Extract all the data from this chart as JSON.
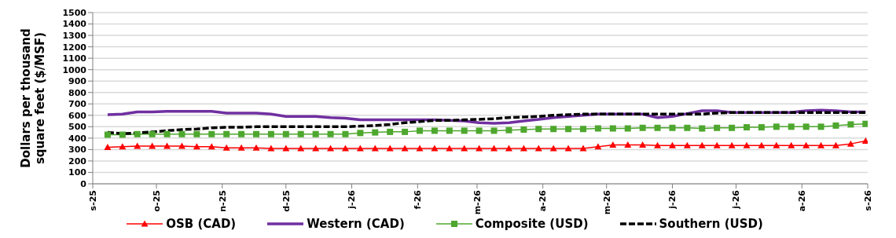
{
  "chart_data": {
    "type": "line",
    "ylabel": "Dollars per thousand square feet ($/MSF)",
    "x": [
      "2025-09-08",
      "2025-09-15",
      "2025-09-22",
      "2025-09-29",
      "2025-10-06",
      "2025-10-13",
      "2025-10-20",
      "2025-10-27",
      "2025-11-03",
      "2025-11-10",
      "2025-11-17",
      "2025-11-24",
      "2025-12-01",
      "2025-12-08",
      "2025-12-15",
      "2025-12-22",
      "2025-12-29",
      "2026-01-05",
      "2026-01-12",
      "2026-01-19",
      "2026-01-26",
      "2026-02-02",
      "2026-02-09",
      "2026-02-16",
      "2026-02-23",
      "2026-03-02",
      "2026-03-09",
      "2026-03-16",
      "2026-03-23",
      "2026-03-30",
      "2026-04-06",
      "2026-04-13",
      "2026-04-20",
      "2026-04-27",
      "2026-05-04",
      "2026-05-11",
      "2026-05-18",
      "2026-05-25",
      "2026-06-01",
      "2026-06-08",
      "2026-06-15",
      "2026-06-22",
      "2026-06-29",
      "2026-07-06",
      "2026-07-13",
      "2026-07-20",
      "2026-07-27",
      "2026-08-03",
      "2026-08-10",
      "2026-08-17",
      "2026-08-24",
      "2026-08-31"
    ],
    "series": [
      {
        "name": "OSB (CAD)",
        "color": "#ff0000",
        "marker": "triangle",
        "line_style": "solid",
        "values": [
          320,
          325,
          330,
          330,
          330,
          330,
          325,
          325,
          315,
          315,
          315,
          310,
          310,
          310,
          310,
          310,
          310,
          310,
          310,
          310,
          310,
          310,
          310,
          310,
          310,
          310,
          310,
          310,
          310,
          310,
          310,
          310,
          310,
          325,
          340,
          340,
          340,
          335,
          335,
          335,
          335,
          335,
          335,
          335,
          335,
          335,
          335,
          335,
          335,
          335,
          350,
          375
        ]
      },
      {
        "name": "Western (CAD)",
        "color": "#7030a0",
        "marker": "none",
        "line_style": "solid",
        "values": [
          605,
          610,
          630,
          630,
          635,
          635,
          635,
          635,
          620,
          620,
          620,
          610,
          590,
          590,
          590,
          580,
          575,
          560,
          560,
          560,
          560,
          560,
          560,
          555,
          550,
          535,
          530,
          535,
          550,
          565,
          580,
          590,
          600,
          610,
          610,
          610,
          610,
          580,
          590,
          615,
          640,
          640,
          625,
          625,
          625,
          625,
          625,
          640,
          645,
          640,
          630,
          630
        ]
      },
      {
        "name": "Composite (USD)",
        "color": "#4ea72e",
        "marker": "square",
        "line_style": "solid",
        "values": [
          430,
          430,
          435,
          435,
          435,
          435,
          435,
          435,
          435,
          435,
          435,
          435,
          435,
          435,
          435,
          435,
          435,
          445,
          450,
          455,
          455,
          465,
          465,
          465,
          465,
          465,
          465,
          470,
          475,
          480,
          480,
          480,
          480,
          485,
          485,
          485,
          490,
          490,
          490,
          490,
          485,
          490,
          490,
          495,
          495,
          500,
          500,
          500,
          500,
          510,
          520,
          525
        ]
      },
      {
        "name": "Southern (USD)",
        "color": "#000000",
        "marker": "none",
        "line_style": "dashed",
        "values": [
          450,
          440,
          445,
          455,
          465,
          475,
          480,
          490,
          495,
          495,
          500,
          500,
          500,
          500,
          500,
          500,
          500,
          505,
          510,
          520,
          535,
          545,
          555,
          555,
          560,
          565,
          570,
          580,
          585,
          590,
          600,
          605,
          610,
          610,
          610,
          610,
          610,
          610,
          610,
          610,
          610,
          620,
          625,
          625,
          625,
          625,
          625,
          625,
          625,
          625,
          625,
          625
        ]
      }
    ],
    "xlim": [
      "2025-09-01",
      "2026-09-01"
    ],
    "xticks": [
      {
        "value": "2025-09-01",
        "label": "s-25"
      },
      {
        "value": "2025-10-01",
        "label": "o-25"
      },
      {
        "value": "2025-11-01",
        "label": "n-25"
      },
      {
        "value": "2025-12-01",
        "label": "d-25"
      },
      {
        "value": "2026-01-01",
        "label": "j-26"
      },
      {
        "value": "2026-02-01",
        "label": "f-26"
      },
      {
        "value": "2026-03-01",
        "label": "m-26"
      },
      {
        "value": "2026-04-01",
        "label": "a-26"
      },
      {
        "value": "2026-05-01",
        "label": "m-26"
      },
      {
        "value": "2026-06-01",
        "label": "j-26"
      },
      {
        "value": "2026-07-01",
        "label": "j-26"
      },
      {
        "value": "2026-08-01",
        "label": "a-26"
      },
      {
        "value": "2026-09-01",
        "label": "s-26"
      }
    ],
    "ylim": [
      0,
      1500
    ],
    "yticks": [
      0,
      100,
      200,
      300,
      400,
      500,
      600,
      700,
      800,
      900,
      1000,
      1100,
      1200,
      1300,
      1400,
      1500
    ],
    "grid": "y",
    "legend": "bottom"
  }
}
